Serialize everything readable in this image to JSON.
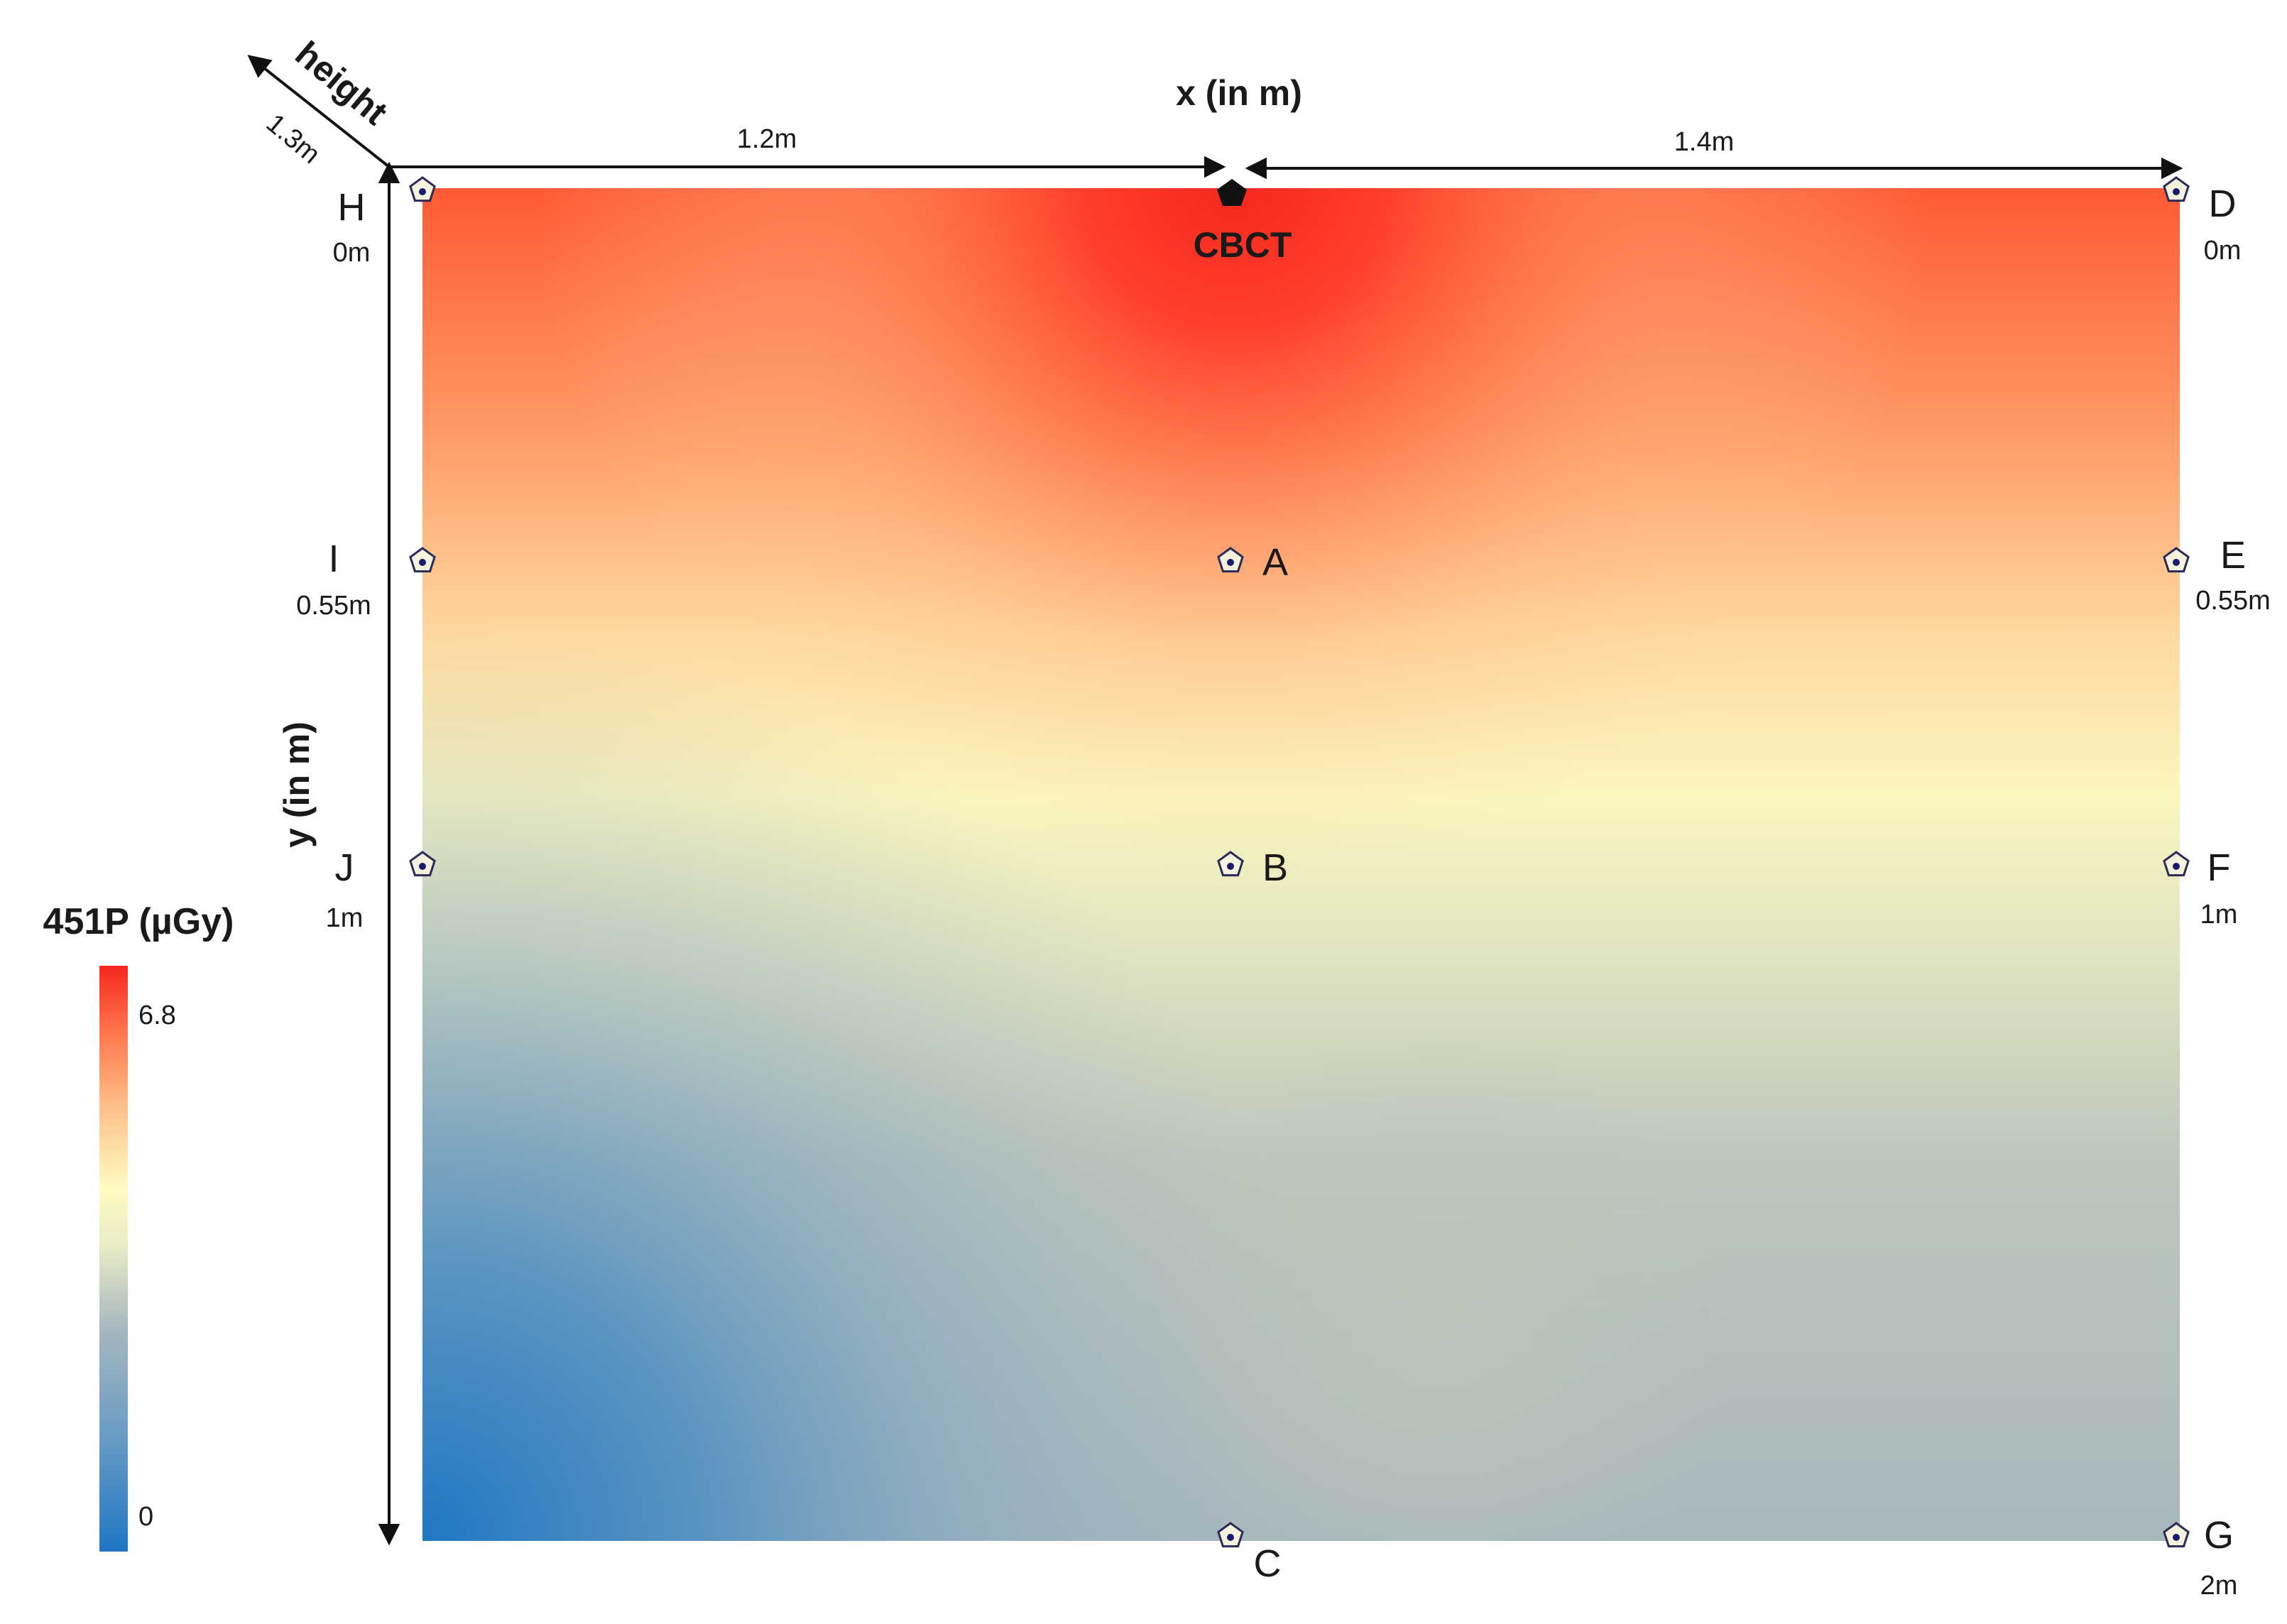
{
  "diagram": {
    "x_axis_title": "x (in m)",
    "y_axis_title": "y (in m)",
    "height_label": "height",
    "height_value": "1.3m",
    "width_segments": [
      "1.2m",
      "1.4m"
    ],
    "source_label": "CBCT",
    "points": [
      {
        "id": "H",
        "distance": "0m"
      },
      {
        "id": "I",
        "distance": "0.55m"
      },
      {
        "id": "J",
        "distance": "1m"
      },
      {
        "id": "D",
        "distance": "0m"
      },
      {
        "id": "E",
        "distance": "0.55m"
      },
      {
        "id": "F",
        "distance": "1m"
      },
      {
        "id": "G",
        "distance": "2m"
      },
      {
        "id": "A"
      },
      {
        "id": "B"
      },
      {
        "id": "C"
      }
    ]
  },
  "legend": {
    "title": "451P (µGy)",
    "max_label": "6.8",
    "min_label": "0",
    "colors": [
      "#1f77c4",
      "#6a9cc4",
      "#a6b8c0",
      "#e8ebc4",
      "#fffbc2",
      "#ffc08a",
      "#ff7a4e",
      "#f5271f"
    ]
  },
  "chart_data": {
    "type": "heatmap",
    "title": "",
    "colorbar_title": "451P (µGy)",
    "colorbar_range": [
      0,
      6.8
    ],
    "x_segments_m": [
      1.2,
      1.4
    ],
    "y_range_m": [
      0,
      2
    ],
    "height_m": 1.3,
    "source": "CBCT",
    "measurement_points": [
      "A",
      "B",
      "C",
      "D",
      "E",
      "F",
      "G",
      "H",
      "I",
      "J"
    ]
  }
}
